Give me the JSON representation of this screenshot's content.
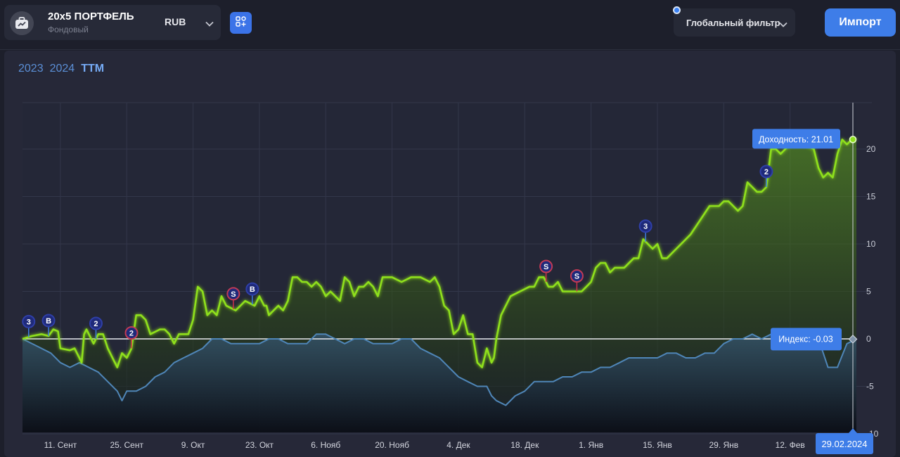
{
  "header": {
    "portfolio_name": "20x5 ПОРТФЕЛЬ",
    "portfolio_type": "Фондовый",
    "currency": "RUB",
    "global_filter_label": "Глобальный фильтр",
    "import_label": "Импорт"
  },
  "colors": {
    "accent": "#3e7de8",
    "portfolio_line": "#8fe01e",
    "index_line": "#4f86b8",
    "background": "#1d1f2b"
  },
  "icons": {
    "portfolio": "briefcase-chart-icon",
    "currency_dropdown": "chevron-down-icon",
    "apps": "apps-grid-icon",
    "filter_dropdown": "chevron-down-icon"
  },
  "range_tabs": [
    {
      "label": "2023",
      "active": false
    },
    {
      "label": "2024",
      "active": false
    },
    {
      "label": "TTM",
      "active": true
    }
  ],
  "chart_data": {
    "type": "area",
    "y_ticks": [
      20,
      15,
      10,
      5,
      0,
      -5,
      -10
    ],
    "ylim": [
      -10,
      25
    ],
    "grid": true,
    "x_ticks": [
      "11. Сент",
      "25. Сент",
      "9. Окт",
      "23. Окт",
      "6. Нояб",
      "20. Нояб",
      "4. Дек",
      "18. Дек",
      "1. Янв",
      "15. Янв",
      "29. Янв",
      "12. Фев"
    ],
    "x_tick_day": [
      8,
      22,
      36,
      50,
      64,
      78,
      92,
      106,
      120,
      134,
      148,
      162
    ],
    "x_range_day": [
      0,
      176
    ],
    "cursor_date": "29.02.2024",
    "tooltips": {
      "portfolio": "Доходность: 21.01",
      "index": "Индекс: -0.03"
    },
    "series": [
      {
        "key": "portfolio",
        "x": [
          0,
          2,
          4,
          5.5,
          6.5,
          7.5,
          8,
          10,
          11,
          12.5,
          13,
          13.5,
          15,
          16,
          17,
          18,
          19,
          20,
          21,
          22,
          23,
          24,
          25,
          26,
          27,
          29,
          30,
          31,
          32,
          33,
          34,
          35,
          36,
          37,
          38,
          39,
          40,
          41,
          42,
          43,
          45,
          47,
          49,
          50,
          51,
          51.5,
          52,
          53,
          54,
          55,
          56,
          57,
          58,
          59,
          60,
          61,
          62,
          63,
          64,
          65,
          66,
          67,
          68,
          69,
          70,
          71,
          72,
          73,
          74,
          75,
          76,
          78,
          80,
          82,
          84,
          86,
          87,
          88,
          89,
          90,
          91,
          92,
          93,
          94,
          95,
          96,
          97,
          98,
          99,
          99.5,
          100,
          101,
          102,
          103,
          105,
          107,
          108,
          109,
          110,
          111,
          112,
          113,
          114,
          115,
          116,
          117,
          118,
          119,
          120,
          121,
          122,
          123,
          124,
          125,
          127,
          129,
          130,
          131,
          132,
          133,
          134,
          135,
          136,
          137,
          139,
          141,
          143,
          145,
          147,
          148,
          149,
          150,
          151,
          152,
          153,
          154,
          155,
          156,
          157,
          158,
          159,
          160,
          161,
          162,
          163,
          165,
          167,
          168,
          169,
          170,
          171,
          172,
          173,
          174,
          175,
          176
        ],
        "y": [
          0,
          0.3,
          0.5,
          0.3,
          1.0,
          0.8,
          -1.0,
          -1.2,
          -1.0,
          -2.5,
          0.5,
          1.0,
          -0.5,
          0.5,
          0.5,
          -1.0,
          -2.0,
          -3.0,
          -1.5,
          -2.0,
          -1.0,
          2.5,
          2.5,
          2.0,
          0.5,
          1.0,
          1.0,
          0.5,
          -0.5,
          0.5,
          0.5,
          0.5,
          2.0,
          5.5,
          5.0,
          2.5,
          3.0,
          2.5,
          4.5,
          3.5,
          3.0,
          4.0,
          3.5,
          4.5,
          3.5,
          3.5,
          2.5,
          3.0,
          3.5,
          3.0,
          4.0,
          6.5,
          6.5,
          6.0,
          6.0,
          5.5,
          6.0,
          5.5,
          4.5,
          5.0,
          4.5,
          4.0,
          6.5,
          6.0,
          4.5,
          5.5,
          5.5,
          6.0,
          5.5,
          4.5,
          6.5,
          6.5,
          6.0,
          6.5,
          6.5,
          6.0,
          6.5,
          5.5,
          3.5,
          3.0,
          0.5,
          1.0,
          2.5,
          0.5,
          0.5,
          -2.5,
          -3.0,
          -1.0,
          -2.5,
          -2.0,
          0,
          2.5,
          3.5,
          4.5,
          5.0,
          5.5,
          5.5,
          6.5,
          6.5,
          5.5,
          5.5,
          6.0,
          5.0,
          5.0,
          5.0,
          5.0,
          5.0,
          5.5,
          6.0,
          7.5,
          8.0,
          8.0,
          7.0,
          7.5,
          7.5,
          8.5,
          8.5,
          10.5,
          10.0,
          9.5,
          10.0,
          8.5,
          8.5,
          9.0,
          10.0,
          11.0,
          12.5,
          14.0,
          14.0,
          14.5,
          14.5,
          14.0,
          13.5,
          14.0,
          16.5,
          16.0,
          15.5,
          15.5,
          16.0,
          20.0,
          20.0,
          19.5,
          20.0,
          20.5,
          21.0,
          20.5,
          20.0,
          18.0,
          17.0,
          17.5,
          17.0,
          19.5,
          21.0,
          20.5,
          21.0,
          21.01
        ]
      },
      {
        "key": "index",
        "x": [
          0,
          4,
          6,
          8,
          10,
          12,
          14,
          16,
          18,
          20,
          21,
          22,
          24,
          26,
          28,
          30,
          32,
          34,
          36,
          38,
          40,
          42,
          44,
          46,
          48,
          50,
          52,
          54,
          56,
          58,
          60,
          62,
          64,
          66,
          68,
          70,
          72,
          74,
          76,
          78,
          80,
          82,
          84,
          86,
          88,
          90,
          92,
          94,
          96,
          98,
          99,
          100,
          102,
          104,
          106,
          108,
          110,
          112,
          114,
          116,
          118,
          120,
          122,
          124,
          126,
          128,
          130,
          132,
          134,
          136,
          138,
          140,
          142,
          144,
          146,
          148,
          150,
          152,
          154,
          156,
          158,
          160,
          162,
          164,
          166,
          168,
          170,
          172,
          174,
          176
        ],
        "y": [
          0,
          -1.0,
          -1.5,
          -2.5,
          -3.0,
          -2.5,
          -3.0,
          -3.5,
          -4.5,
          -5.5,
          -6.5,
          -5.5,
          -5.5,
          -5.0,
          -4.0,
          -3.5,
          -2.5,
          -2.0,
          -1.5,
          -1.0,
          0,
          0,
          -0.5,
          -0.5,
          -0.5,
          -0.5,
          0,
          0,
          -0.5,
          -0.5,
          -0.5,
          0.5,
          0.5,
          0,
          -0.5,
          0,
          0,
          -0.5,
          -0.5,
          -0.5,
          0,
          0,
          -1.0,
          -1.5,
          -2.0,
          -3.0,
          -4.0,
          -4.5,
          -5.0,
          -5.0,
          -6.0,
          -6.5,
          -7.0,
          -6.0,
          -5.5,
          -4.5,
          -4.5,
          -4.5,
          -4.0,
          -4.0,
          -3.5,
          -3.5,
          -3.0,
          -3.0,
          -2.5,
          -2.0,
          -2.0,
          -2.0,
          -2.0,
          -1.5,
          -1.5,
          -2.0,
          -2.0,
          -1.5,
          -1.5,
          -0.5,
          0,
          0,
          0.5,
          0,
          0.5,
          0.5,
          0,
          0,
          0,
          0,
          -3.0,
          -3.0,
          -0.5,
          -0.03
        ]
      }
    ],
    "markers": [
      {
        "day": 1.3,
        "label": "3",
        "style": "navy"
      },
      {
        "day": 5.5,
        "label": "B",
        "style": "navy"
      },
      {
        "day": 15.5,
        "label": "2",
        "style": "navy"
      },
      {
        "day": 23,
        "label": "2",
        "style": "red"
      },
      {
        "day": 44.5,
        "label": "S",
        "style": "red"
      },
      {
        "day": 48.5,
        "label": "B",
        "style": "navy"
      },
      {
        "day": 110.5,
        "label": "S",
        "style": "red"
      },
      {
        "day": 117,
        "label": "S",
        "style": "red"
      },
      {
        "day": 131.5,
        "label": "3",
        "style": "navy"
      },
      {
        "day": 157,
        "label": "2",
        "style": "navy"
      }
    ]
  }
}
